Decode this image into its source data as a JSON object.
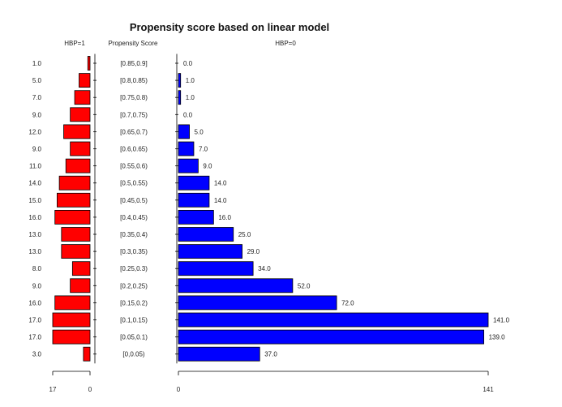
{
  "chart_data": {
    "type": "bar",
    "title": "Propensity score based on linear model",
    "left_label": "HBP=1",
    "center_label": "Propensity Score",
    "right_label": "HBP=0",
    "categories": [
      "[0.85,0.9]",
      "[0.8,0.85)",
      "[0.75,0.8)",
      "[0.7,0.75)",
      "[0.65,0.7)",
      "[0.6,0.65)",
      "[0.55,0.6)",
      "[0.5,0.55)",
      "[0.45,0.5)",
      "[0.4,0.45)",
      "[0.35,0.4)",
      "[0.3,0.35)",
      "[0.25,0.3)",
      "[0.2,0.25)",
      "[0.15,0.2)",
      "[0.1,0.15)",
      "[0.05,0.1)",
      "[0,0.05)"
    ],
    "series": [
      {
        "name": "HBP=1",
        "color": "#ff0000",
        "values": [
          1,
          5,
          7,
          9,
          12,
          9,
          11,
          14,
          15,
          16,
          13,
          13,
          8,
          9,
          16,
          17,
          17,
          3
        ],
        "labels": [
          "1.0",
          "5.0",
          "7.0",
          "9.0",
          "12.0",
          "9.0",
          "11.0",
          "14.0",
          "15.0",
          "16.0",
          "13.0",
          "13.0",
          "8.0",
          "9.0",
          "16.0",
          "17.0",
          "17.0",
          "3.0"
        ]
      },
      {
        "name": "HBP=0",
        "color": "#0000ff",
        "values": [
          0,
          1,
          1,
          0,
          5,
          7,
          9,
          14,
          14,
          16,
          25,
          29,
          34,
          52,
          72,
          141,
          139,
          37
        ],
        "labels": [
          "0.0",
          "1.0",
          "1.0",
          "0.0",
          "5.0",
          "7.0",
          "9.0",
          "14.0",
          "14.0",
          "16.0",
          "25.0",
          "29.0",
          "34.0",
          "52.0",
          "72.0",
          "141.0",
          "139.0",
          "37.0"
        ]
      }
    ],
    "left_axis": {
      "ticks": [
        "17",
        "0"
      ],
      "max": 17
    },
    "right_axis": {
      "ticks": [
        "0",
        "141"
      ],
      "max": 141
    }
  }
}
